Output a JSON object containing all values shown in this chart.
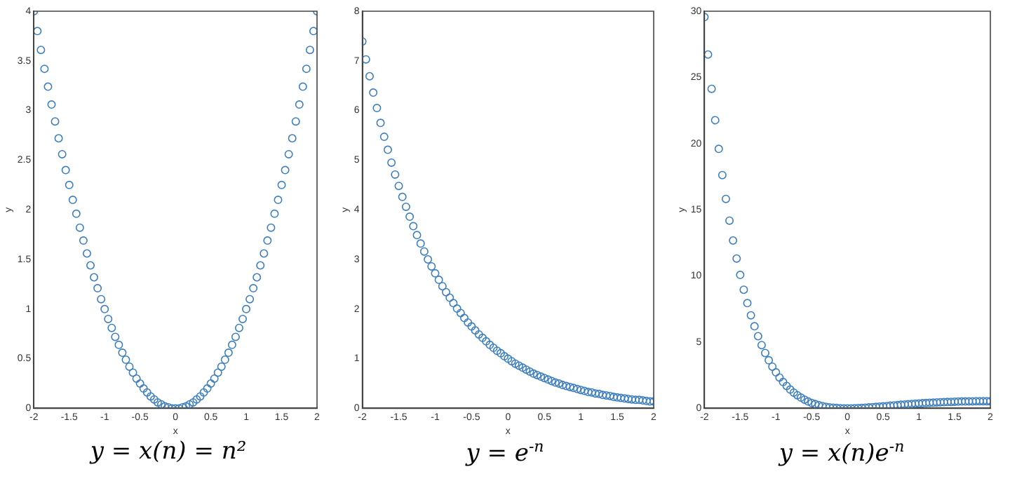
{
  "chart_data": [
    {
      "type": "scatter",
      "title": "y = x(n) = n²",
      "xlabel": "x",
      "ylabel": "y",
      "marker": "circle",
      "xlim": [
        -2,
        2
      ],
      "ylim": [
        0,
        4
      ],
      "xticks": [
        -2,
        -1.5,
        -1,
        -0.5,
        0,
        0.5,
        1,
        1.5,
        2
      ],
      "yticks": [
        0,
        0.5,
        1,
        1.5,
        2,
        2.5,
        3,
        3.5,
        4
      ],
      "x": [
        -2,
        -1.95,
        -1.9,
        -1.85,
        -1.8,
        -1.75,
        -1.7,
        -1.65,
        -1.6,
        -1.55,
        -1.5,
        -1.45,
        -1.4,
        -1.35,
        -1.3,
        -1.25,
        -1.2,
        -1.15,
        -1.1,
        -1.05,
        -1,
        -0.95,
        -0.9,
        -0.85,
        -0.8,
        -0.75,
        -0.7,
        -0.65,
        -0.6,
        -0.55,
        -0.5,
        -0.45,
        -0.4,
        -0.35,
        -0.3,
        -0.25,
        -0.2,
        -0.15,
        -0.1,
        -0.05,
        0,
        0.05,
        0.1,
        0.15,
        0.2,
        0.25,
        0.3,
        0.35,
        0.4,
        0.45,
        0.5,
        0.55,
        0.6,
        0.65,
        0.7,
        0.75,
        0.8,
        0.85,
        0.9,
        0.95,
        1,
        1.05,
        1.1,
        1.15,
        1.2,
        1.25,
        1.3,
        1.35,
        1.4,
        1.45,
        1.5,
        1.55,
        1.6,
        1.65,
        1.7,
        1.75,
        1.8,
        1.85,
        1.9,
        1.95,
        2
      ],
      "series": [
        {
          "color": "#3d7fc0",
          "values": [
            4,
            3.8,
            3.61,
            3.42,
            3.24,
            3.06,
            2.89,
            2.72,
            2.56,
            2.4,
            2.25,
            2.1,
            1.96,
            1.82,
            1.69,
            1.56,
            1.44,
            1.32,
            1.21,
            1.1,
            1,
            0.9,
            0.81,
            0.72,
            0.64,
            0.56,
            0.49,
            0.42,
            0.36,
            0.3,
            0.25,
            0.2,
            0.16,
            0.12,
            0.09,
            0.06,
            0.04,
            0.02,
            0.01,
            0,
            0,
            0,
            0.01,
            0.02,
            0.04,
            0.06,
            0.09,
            0.12,
            0.16,
            0.2,
            0.25,
            0.3,
            0.36,
            0.42,
            0.49,
            0.56,
            0.64,
            0.72,
            0.81,
            0.9,
            1,
            1.1,
            1.21,
            1.32,
            1.44,
            1.56,
            1.69,
            1.82,
            1.96,
            2.1,
            2.25,
            2.4,
            2.56,
            2.72,
            2.89,
            3.06,
            3.24,
            3.42,
            3.61,
            3.8,
            4
          ]
        }
      ]
    },
    {
      "type": "scatter",
      "title": "y = e$^{-n}$",
      "xlabel": "x",
      "ylabel": "y",
      "marker": "circle",
      "xlim": [
        -2,
        2
      ],
      "ylim": [
        0,
        8
      ],
      "xticks": [
        -2,
        -1.5,
        -1,
        -0.5,
        0,
        0.5,
        1,
        1.5,
        2
      ],
      "yticks": [
        0,
        1,
        2,
        3,
        4,
        5,
        6,
        7,
        8
      ],
      "x": [
        -2,
        -1.95,
        -1.9,
        -1.85,
        -1.8,
        -1.75,
        -1.7,
        -1.65,
        -1.6,
        -1.55,
        -1.5,
        -1.45,
        -1.4,
        -1.35,
        -1.3,
        -1.25,
        -1.2,
        -1.15,
        -1.1,
        -1.05,
        -1,
        -0.95,
        -0.9,
        -0.85,
        -0.8,
        -0.75,
        -0.7,
        -0.65,
        -0.6,
        -0.55,
        -0.5,
        -0.45,
        -0.4,
        -0.35,
        -0.3,
        -0.25,
        -0.2,
        -0.15,
        -0.1,
        -0.05,
        0,
        0.05,
        0.1,
        0.15,
        0.2,
        0.25,
        0.3,
        0.35,
        0.4,
        0.45,
        0.5,
        0.55,
        0.6,
        0.65,
        0.7,
        0.75,
        0.8,
        0.85,
        0.9,
        0.95,
        1,
        1.05,
        1.1,
        1.15,
        1.2,
        1.25,
        1.3,
        1.35,
        1.4,
        1.45,
        1.5,
        1.55,
        1.6,
        1.65,
        1.7,
        1.75,
        1.8,
        1.85,
        1.9,
        1.95,
        2
      ],
      "series": [
        {
          "color": "#3d7fc0",
          "values": [
            7.39,
            7.03,
            6.69,
            6.36,
            6.05,
            5.75,
            5.47,
            5.21,
            4.95,
            4.71,
            4.48,
            4.26,
            4.06,
            3.86,
            3.67,
            3.49,
            3.32,
            3.16,
            3,
            2.86,
            2.72,
            2.59,
            2.46,
            2.34,
            2.23,
            2.12,
            2.01,
            1.92,
            1.82,
            1.73,
            1.65,
            1.57,
            1.49,
            1.42,
            1.35,
            1.28,
            1.22,
            1.16,
            1.11,
            1.05,
            1,
            0.95,
            0.9,
            0.86,
            0.82,
            0.78,
            0.74,
            0.7,
            0.67,
            0.64,
            0.61,
            0.58,
            0.55,
            0.52,
            0.5,
            0.47,
            0.45,
            0.43,
            0.41,
            0.39,
            0.37,
            0.35,
            0.33,
            0.32,
            0.3,
            0.29,
            0.27,
            0.26,
            0.25,
            0.23,
            0.22,
            0.21,
            0.2,
            0.19,
            0.18,
            0.17,
            0.17,
            0.16,
            0.15,
            0.14,
            0.14
          ]
        }
      ]
    },
    {
      "type": "scatter",
      "title": "y = x(n)e$^{-n}$",
      "xlabel": "x",
      "ylabel": "y",
      "marker": "circle",
      "xlim": [
        -2,
        2
      ],
      "ylim": [
        0,
        30
      ],
      "xticks": [
        -2,
        -1.5,
        -1,
        -0.5,
        0,
        0.5,
        1,
        1.5,
        2
      ],
      "yticks": [
        0,
        5,
        10,
        15,
        20,
        25,
        30
      ],
      "x": [
        -2,
        -1.95,
        -1.9,
        -1.85,
        -1.8,
        -1.75,
        -1.7,
        -1.65,
        -1.6,
        -1.55,
        -1.5,
        -1.45,
        -1.4,
        -1.35,
        -1.3,
        -1.25,
        -1.2,
        -1.15,
        -1.1,
        -1.05,
        -1,
        -0.95,
        -0.9,
        -0.85,
        -0.8,
        -0.75,
        -0.7,
        -0.65,
        -0.6,
        -0.55,
        -0.5,
        -0.45,
        -0.4,
        -0.35,
        -0.3,
        -0.25,
        -0.2,
        -0.15,
        -0.1,
        -0.05,
        0,
        0.05,
        0.1,
        0.15,
        0.2,
        0.25,
        0.3,
        0.35,
        0.4,
        0.45,
        0.5,
        0.55,
        0.6,
        0.65,
        0.7,
        0.75,
        0.8,
        0.85,
        0.9,
        0.95,
        1,
        1.05,
        1.1,
        1.15,
        1.2,
        1.25,
        1.3,
        1.35,
        1.4,
        1.45,
        1.5,
        1.55,
        1.6,
        1.65,
        1.7,
        1.75,
        1.8,
        1.85,
        1.9,
        1.95,
        2
      ],
      "series": [
        {
          "color": "#3d7fc0",
          "values": [
            29.56,
            26.73,
            24.14,
            21.77,
            19.6,
            17.62,
            15.82,
            14.18,
            12.68,
            11.32,
            10.08,
            8.96,
            7.95,
            7.03,
            6.2,
            5.45,
            4.78,
            4.18,
            3.63,
            3.15,
            2.72,
            2.33,
            1.99,
            1.69,
            1.42,
            1.19,
            0.99,
            0.81,
            0.66,
            0.52,
            0.41,
            0.32,
            0.24,
            0.17,
            0.12,
            0.08,
            0.05,
            0.03,
            0.01,
            0,
            0,
            0,
            0.01,
            0.02,
            0.03,
            0.05,
            0.07,
            0.09,
            0.11,
            0.13,
            0.15,
            0.17,
            0.2,
            0.22,
            0.24,
            0.27,
            0.29,
            0.31,
            0.33,
            0.35,
            0.37,
            0.39,
            0.4,
            0.42,
            0.43,
            0.45,
            0.46,
            0.47,
            0.48,
            0.49,
            0.5,
            0.51,
            0.52,
            0.52,
            0.53,
            0.53,
            0.54,
            0.54,
            0.54,
            0.54,
            0.54
          ]
        }
      ]
    }
  ]
}
